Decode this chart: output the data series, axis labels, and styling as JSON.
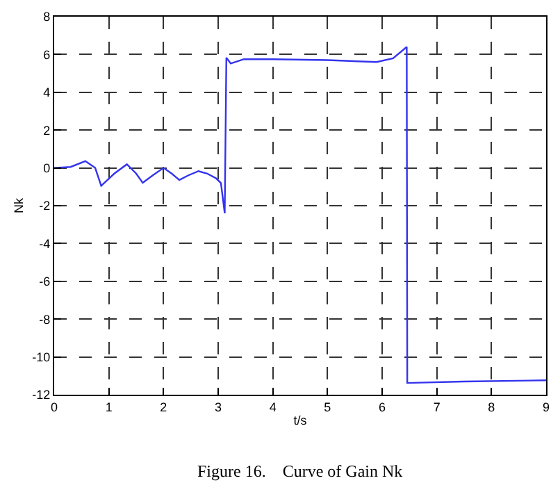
{
  "chart_data": {
    "type": "line",
    "xlabel": "t/s",
    "ylabel": "Nk",
    "annotations": [
      "Figure 16.    Curve of Gain Nk"
    ],
    "x": [
      0,
      0.3,
      0.57,
      0.75,
      0.86,
      1.1,
      1.33,
      1.5,
      1.62,
      1.8,
      2.0,
      2.15,
      2.29,
      2.45,
      2.64,
      2.8,
      2.96,
      3.05,
      3.12,
      3.15,
      3.23,
      3.47,
      4.0,
      5.0,
      5.9,
      6.2,
      6.45,
      6.46,
      7.5,
      9.0
    ],
    "series": [
      {
        "color": "#3333ee",
        "values": [
          0,
          0.05,
          0.36,
          0.0,
          -0.95,
          -0.3,
          0.19,
          -0.3,
          -0.79,
          -0.4,
          0.0,
          -0.3,
          -0.64,
          -0.4,
          -0.17,
          -0.3,
          -0.55,
          -0.8,
          -2.4,
          5.83,
          5.52,
          5.75,
          5.75,
          5.7,
          5.6,
          5.8,
          6.4,
          -11.38,
          -11.3,
          -11.24
        ]
      }
    ],
    "xlim": [
      0,
      9
    ],
    "xticks": [
      0,
      1,
      2,
      3,
      4,
      5,
      6,
      7,
      8,
      9
    ],
    "ylim": [
      -12,
      8
    ],
    "yticks": [
      -12,
      -10,
      -8,
      -6,
      -4,
      -2,
      0,
      2,
      4,
      6,
      8
    ],
    "grid": true,
    "line_style": "solid",
    "marker": "none",
    "legend": false
  }
}
